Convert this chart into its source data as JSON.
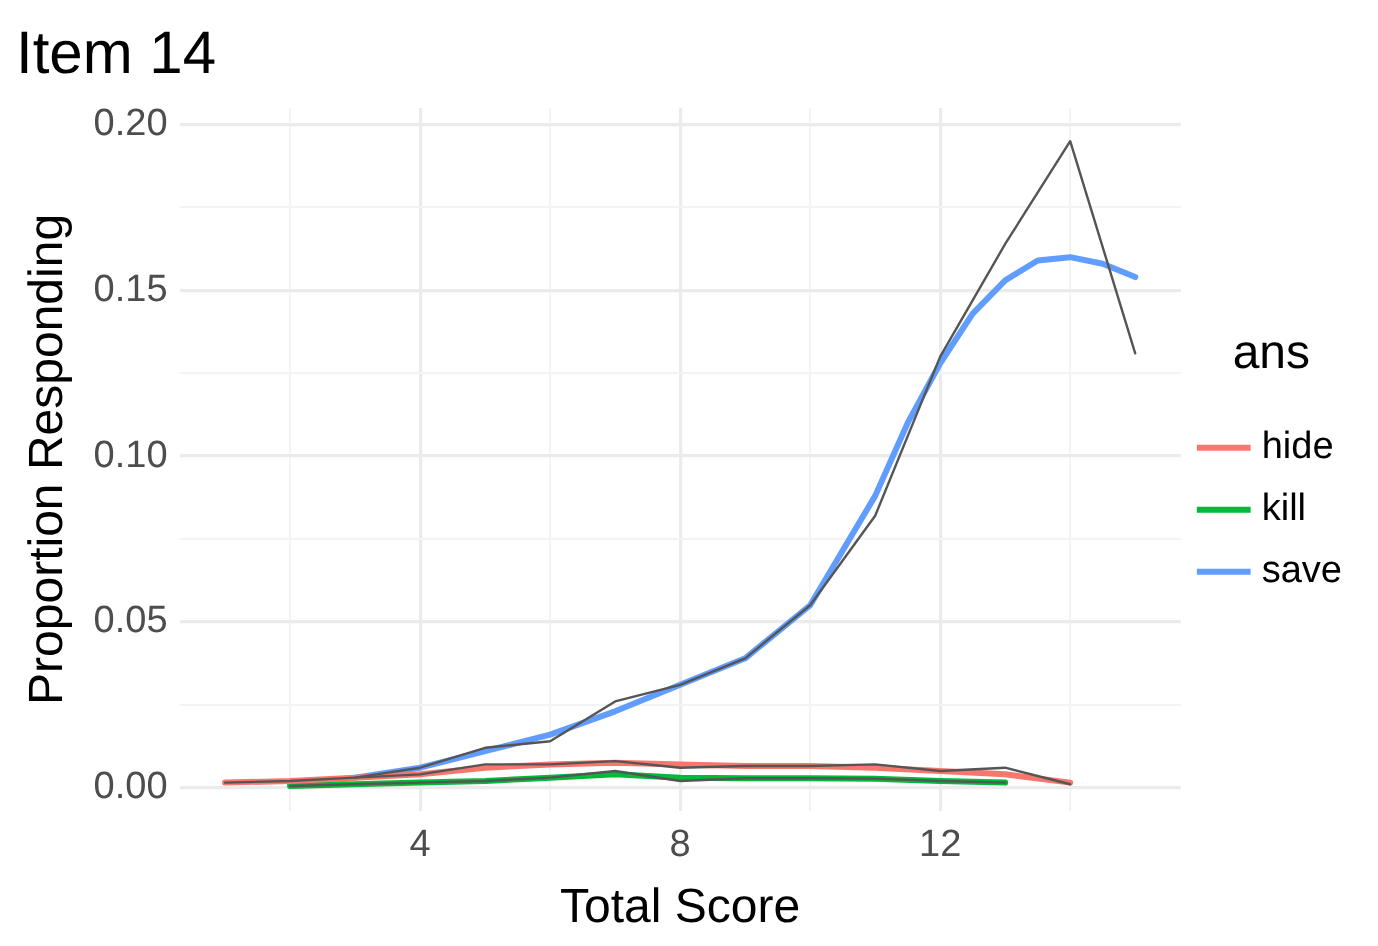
{
  "chart_data": {
    "type": "line",
    "title": "Item 14",
    "xlabel": "Total Score",
    "ylabel": "Proportion Responding",
    "legend_title": "ans",
    "legend": "right",
    "grid": true,
    "marker": "none",
    "xlim": [
      0.3,
      15.7
    ],
    "ylim": [
      -0.007,
      0.205
    ],
    "xticks": [
      {
        "value": 2,
        "label": null
      },
      4,
      {
        "value": 6,
        "label": null
      },
      8,
      {
        "value": 10,
        "label": null
      },
      12,
      {
        "value": 14,
        "label": null
      }
    ],
    "yticks": [
      {
        "value": 0,
        "label": "0.00"
      },
      {
        "value": 0.025,
        "label": null
      },
      {
        "value": 0.05,
        "label": "0.05"
      },
      {
        "value": 0.075,
        "label": null
      },
      {
        "value": 0.1,
        "label": "0.10"
      },
      {
        "value": 0.125,
        "label": null
      },
      {
        "value": 0.15,
        "label": "0.15"
      },
      {
        "value": 0.175,
        "label": null
      },
      {
        "value": 0.2,
        "label": "0.20"
      }
    ],
    "series": [
      {
        "color": "#555555",
        "x": [
          1,
          2,
          3,
          4,
          5,
          6,
          7,
          8,
          9,
          10,
          11,
          12,
          13,
          14
        ],
        "values": [
          0.0015,
          0.002,
          0.003,
          0.004,
          0.007,
          0.007,
          0.008,
          0.006,
          0.0065,
          0.0065,
          0.007,
          0.005,
          0.006,
          0.001
        ]
      },
      {
        "color": "#555555",
        "x": [
          2,
          3,
          4,
          5,
          6,
          7,
          8,
          9,
          10,
          11,
          12,
          13
        ],
        "values": [
          0.0005,
          0.001,
          0.0015,
          0.002,
          0.003,
          0.005,
          0.002,
          0.0028,
          0.0028,
          0.0027,
          0.002,
          0.0015
        ]
      },
      {
        "color": "#555555",
        "x": [
          3,
          4,
          5,
          6,
          7,
          8,
          9,
          10,
          11,
          12,
          13,
          14,
          15
        ],
        "values": [
          0.003,
          0.006,
          0.012,
          0.014,
          0.026,
          0.031,
          0.039,
          0.055,
          0.082,
          0.13,
          0.164,
          0.195,
          0.131
        ]
      },
      {
        "name": "hide",
        "color": "#f8766d",
        "x": [
          1,
          2,
          3,
          4,
          5,
          6,
          7,
          8,
          9,
          10,
          11,
          12,
          13,
          14
        ],
        "values": [
          0.0015,
          0.002,
          0.003,
          0.004,
          0.006,
          0.007,
          0.0075,
          0.007,
          0.0065,
          0.0065,
          0.006,
          0.005,
          0.004,
          0.0015
        ]
      },
      {
        "name": "kill",
        "color": "#00ba38",
        "x": [
          2,
          3,
          4,
          5,
          6,
          7,
          8,
          9,
          10,
          11,
          12,
          13
        ],
        "values": [
          0.0005,
          0.001,
          0.0015,
          0.002,
          0.003,
          0.004,
          0.003,
          0.0028,
          0.0028,
          0.0027,
          0.002,
          0.0015
        ]
      },
      {
        "name": "save",
        "color": "#619cff",
        "x": [
          2,
          3,
          4,
          5,
          6,
          7,
          8,
          9,
          10,
          11,
          11.5,
          12,
          12.5,
          13,
          13.5,
          14,
          14.5,
          15
        ],
        "values": [
          0.001,
          0.003,
          0.006,
          0.011,
          0.016,
          0.023,
          0.031,
          0.039,
          0.055,
          0.088,
          0.11,
          0.128,
          0.143,
          0.153,
          0.159,
          0.16,
          0.158,
          0.154
        ]
      }
    ]
  }
}
